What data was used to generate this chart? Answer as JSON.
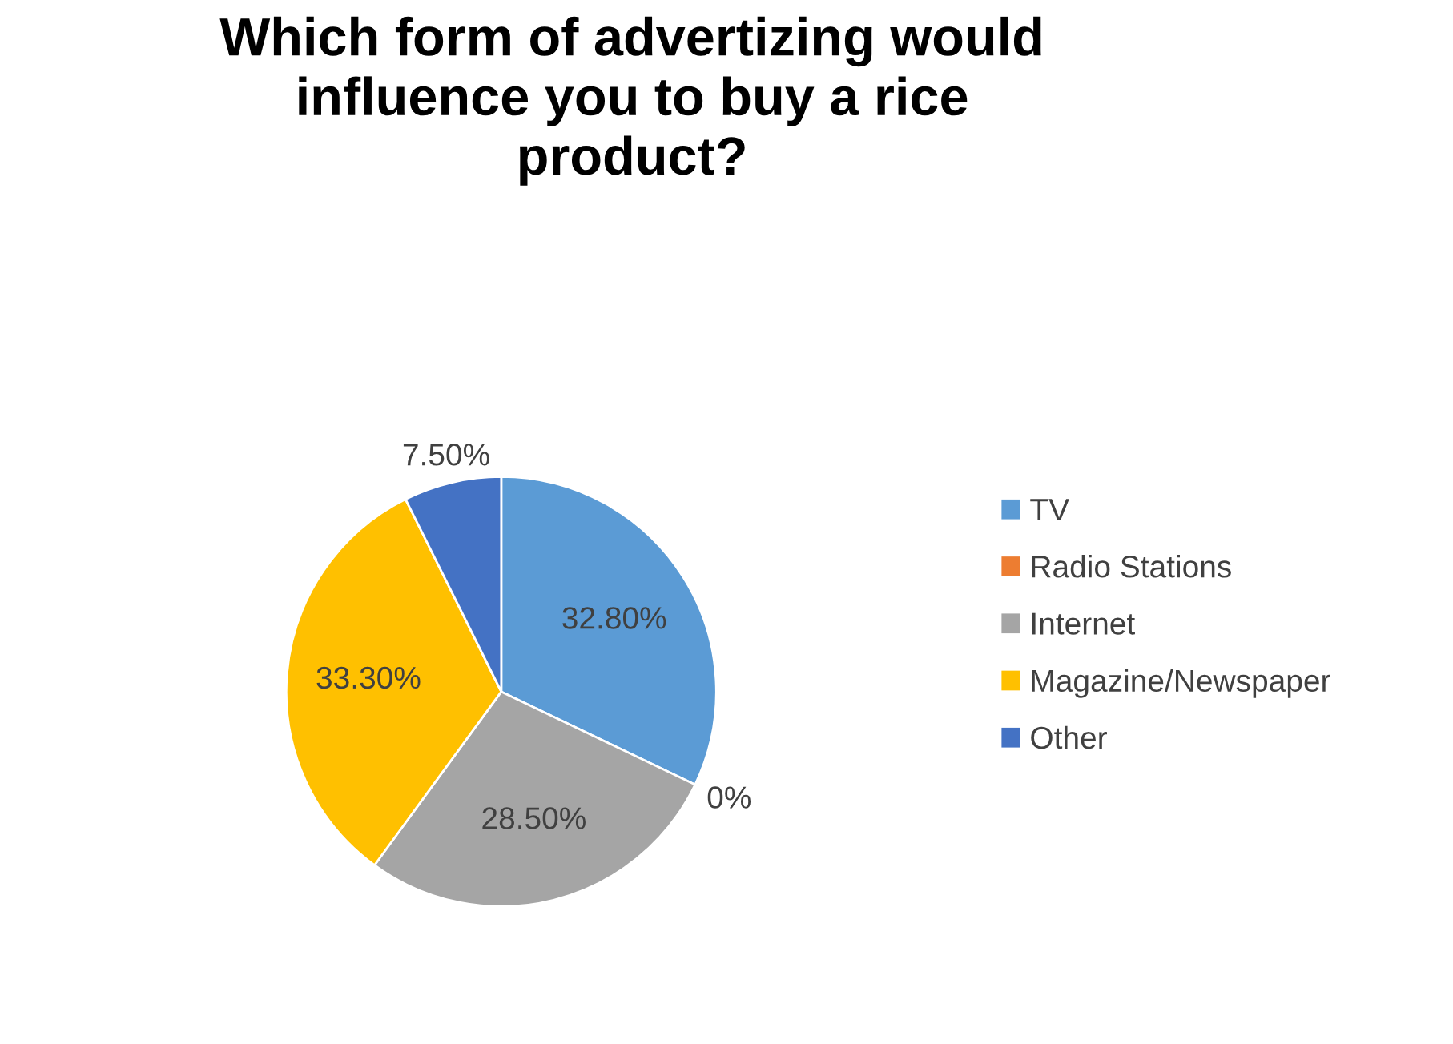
{
  "chart_data": {
    "type": "pie",
    "title": "Which form of advertizing would influence you to buy a rice product?",
    "categories": [
      "TV",
      "Radio Stations",
      "Internet",
      "Magazine/Newspaper",
      "Other"
    ],
    "values": [
      32.8,
      0,
      28.5,
      33.3,
      7.5
    ],
    "colors": [
      "#5b9bd5",
      "#ed7d31",
      "#a5a5a5",
      "#ffc000",
      "#4472c4"
    ],
    "value_labels": [
      "32.80%",
      "0%",
      "28.50%",
      "33.30%",
      "7.50%"
    ],
    "legend": "right"
  }
}
